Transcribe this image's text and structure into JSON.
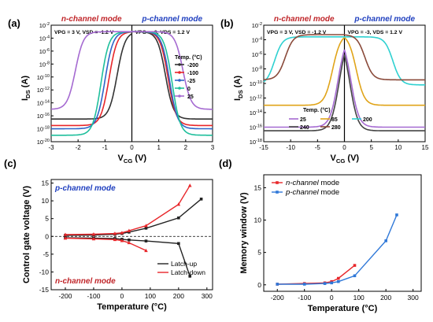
{
  "chart_data": [
    {
      "panel": "(a)",
      "type": "line",
      "xlabel_main": "V",
      "xlabel_sub": "CG",
      "xlabel_unit": " (V)",
      "ylabel_main": "I",
      "ylabel_sub": "DS",
      "ylabel_unit": " (A)",
      "xlim": [
        -3,
        3
      ],
      "x_ticks": [
        "-3",
        "-2",
        "-1",
        "0",
        "1",
        "2",
        "3"
      ],
      "ylim_exp": [
        -20,
        -2
      ],
      "y_ticks": [
        "10-2",
        "10-4",
        "10-6",
        "10-8",
        "10-10",
        "10-12",
        "10-14",
        "10-16",
        "10-18",
        "10-20"
      ],
      "mode_left": "n-channel mode",
      "mode_right": "p-channel mode",
      "bias_left": "VPG = 3 V, VSD = -1.2 V",
      "bias_right": "VPG = -3, VDS = 1.2 V",
      "legend_title": "Temp. (°C)",
      "series": [
        {
          "name": "-200",
          "color": "#333333",
          "on_exp": -3.0,
          "off_exp": -16.5,
          "vth_n": -0.55,
          "vth_p": 1.25
        },
        {
          "name": "-100",
          "color": "#e8262a",
          "on_exp": -3.0,
          "off_exp": -17.5,
          "vth_n": -0.85,
          "vth_p": 1.35
        },
        {
          "name": "-25",
          "color": "#2f64c8",
          "on_exp": -3.0,
          "off_exp": -18.0,
          "vth_n": -1.0,
          "vth_p": 1.4
        },
        {
          "name": "0",
          "color": "#1fbf9c",
          "on_exp": -3.0,
          "off_exp": -19.0,
          "vth_n": -1.15,
          "vth_p": 1.5
        },
        {
          "name": "25",
          "color": "#a56ad1",
          "on_exp": -3.0,
          "off_exp": -15.0,
          "vth_n": -2.1,
          "vth_p": 1.9
        }
      ]
    },
    {
      "panel": "(b)",
      "type": "line",
      "xlabel_main": "V",
      "xlabel_sub": "CG",
      "xlabel_unit": " (V)",
      "ylabel_main": "I",
      "ylabel_sub": "DS",
      "ylabel_unit": " (A)",
      "xlim": [
        -15,
        15
      ],
      "x_ticks": [
        "-15",
        "-10",
        "-5",
        "0",
        "5",
        "10",
        "15"
      ],
      "ylim_exp": [
        -18,
        -2
      ],
      "y_ticks": [
        "10-2",
        "10-4",
        "10-6",
        "10-8",
        "10-10",
        "10-12",
        "10-14",
        "10-16",
        "10-18"
      ],
      "mode_left": "n-channel mode",
      "mode_right": "p-channel mode",
      "bias_left": "VPG = 3 V, VSD = -1.2 V",
      "bias_right": "VPG = -3, VDS = 1.2 V",
      "legend_title": "Temp. (°C)",
      "series": [
        {
          "name": "25",
          "color": "#a56ad1",
          "on_exp": -3.2,
          "off_exp": -16.0,
          "vth_n": -1.2,
          "vth_p": 1.2
        },
        {
          "name": "85",
          "color": "#e0a419",
          "on_exp": -3.2,
          "off_exp": -13.0,
          "vth_n": -2.2,
          "vth_p": 2.2
        },
        {
          "name": "200",
          "color": "#2fd1d1",
          "on_exp": -3.6,
          "off_exp": -10.2,
          "vth_n": -13.0,
          "vth_p": 9.0
        },
        {
          "name": "240",
          "color": "#444444",
          "on_exp": -3.3,
          "off_exp": -16.5,
          "vth_n": -1.0,
          "vth_p": 1.0
        },
        {
          "name": "280",
          "color": "#8a4a3a",
          "on_exp": -3.3,
          "off_exp": -9.5,
          "vth_n": -11.0,
          "vth_p": 3.8
        }
      ]
    },
    {
      "panel": "(c)",
      "type": "line",
      "xlabel": "Temperature (°C)",
      "ylabel": "Control gate voltage (V)",
      "xlim": [
        -250,
        320
      ],
      "ylim": [
        -15,
        16
      ],
      "x_ticks": [
        "-200",
        "-100",
        "0",
        "100",
        "200",
        "300"
      ],
      "y_ticks": [
        "15",
        "10",
        "5",
        "0",
        "-5",
        "-10",
        "-15"
      ],
      "label_top": "p-channel mode",
      "label_bottom": "n-channel mode",
      "x": [
        -200,
        -100,
        -25,
        0,
        25,
        85,
        200,
        240,
        280
      ],
      "series": [
        {
          "name": "Latch-up",
          "color": "#222222",
          "upper": [
            -200,
            -100,
            -25,
            0,
            25,
            85,
            200,
            280
          ],
          "upper_v": [
            0.3,
            0.4,
            0.6,
            0.8,
            1.2,
            2.3,
            5.2,
            10.5
          ],
          "lower": [
            -200,
            -100,
            -25,
            0,
            25,
            85,
            200,
            240
          ],
          "lower_v": [
            -0.4,
            -0.5,
            -0.6,
            -0.8,
            -1.0,
            -1.3,
            -2.0,
            -11.2
          ]
        },
        {
          "name": "Latch-down",
          "color": "#e8262a",
          "upper": [
            -200,
            -100,
            -25,
            0,
            25,
            85,
            200,
            240
          ],
          "upper_v": [
            0.5,
            0.6,
            0.8,
            1.0,
            1.6,
            3.0,
            9.0,
            14.3
          ],
          "lower": [
            -200,
            -100,
            -25,
            0,
            25,
            85
          ],
          "lower_v": [
            -0.5,
            -0.7,
            -0.9,
            -1.2,
            -1.8,
            -4.0
          ]
        }
      ]
    },
    {
      "panel": "(d)",
      "type": "line",
      "xlabel": "Temperature (°C)",
      "ylabel": "Memory window (V)",
      "xlim": [
        -250,
        330
      ],
      "ylim": [
        -1,
        17
      ],
      "x_ticks": [
        "-200",
        "-100",
        "0",
        "100",
        "200",
        "300"
      ],
      "y_ticks": [
        "15",
        "10",
        "5",
        "0"
      ],
      "series": [
        {
          "name": "n-channel mode",
          "color": "#e8262a",
          "x": [
            -200,
            -100,
            -25,
            0,
            25,
            85
          ],
          "y": [
            0.1,
            0.2,
            0.3,
            0.5,
            1.0,
            3.0
          ]
        },
        {
          "name": "p-channel mode",
          "color": "#2f78d8",
          "x": [
            -200,
            -100,
            -25,
            0,
            25,
            85,
            200,
            240
          ],
          "y": [
            0.1,
            0.1,
            0.2,
            0.3,
            0.5,
            1.4,
            6.8,
            10.8
          ]
        }
      ]
    }
  ]
}
